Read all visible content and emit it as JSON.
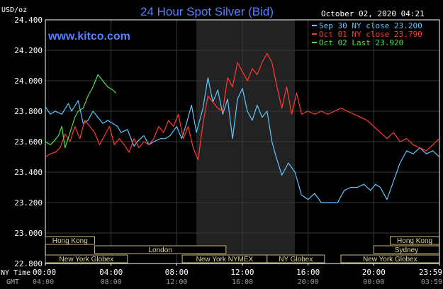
{
  "header": {
    "title": "24 Hour Spot Silver (Bid)",
    "website": "www.kitco.com",
    "y_unit": "USD/oz",
    "datetime": "October 02, 2020 04:21"
  },
  "legend": [
    {
      "label": "Sep 30 NY close 23.200",
      "color": "#5ec8ff"
    },
    {
      "label": "Oct 01 NY close 23.790",
      "color": "#ff3b30"
    },
    {
      "label": "Oct 02 Last 23.920",
      "color": "#52e04a"
    }
  ],
  "axis_row_labels": {
    "ny_time": "NY Time",
    "gmt": "GMT"
  },
  "sessions": [
    {
      "label": "Hong Kong",
      "row": 0,
      "start": "00:00",
      "end": "03:00"
    },
    {
      "label": "Hong Kong",
      "row": 0,
      "start": "21:00",
      "end": "23:59"
    },
    {
      "label": "London",
      "row": 1,
      "start": "03:00",
      "end": "11:00"
    },
    {
      "label": "Sydney",
      "row": 1,
      "start": "20:00",
      "end": "23:59"
    },
    {
      "label": "New York Globex",
      "row": 2,
      "start": "00:00",
      "end": "05:00"
    },
    {
      "label": "New York NYMEX",
      "row": 2,
      "start": "08:20",
      "end": "13:30"
    },
    {
      "label": "NY Globex",
      "row": 2,
      "start": "13:30",
      "end": "17:00"
    },
    {
      "label": "New York Globex",
      "row": 2,
      "start": "18:00",
      "end": "23:59"
    }
  ],
  "chart_data": {
    "type": "line",
    "title": "24 Hour Spot Silver (Bid)",
    "ylabel": "USD/oz",
    "ylim": [
      22.8,
      24.4
    ],
    "y_ticks": [
      "24.400",
      "24.200",
      "24.000",
      "23.800",
      "23.600",
      "23.400",
      "23.200",
      "23.000",
      "22.800"
    ],
    "x_ticks_ny": [
      "00:00",
      "04:00",
      "08:00",
      "12:00",
      "16:00",
      "20:00",
      "23:59"
    ],
    "x_ticks_gmt": [
      "04:00",
      "08:00",
      "12:00",
      "16:00",
      "20:00",
      "00:00",
      "03:59"
    ],
    "highlight_range_hours": [
      9.2,
      15.2
    ],
    "grid": true,
    "legend_position": "top-right",
    "series": [
      {
        "name": "Sep 30 NY close 23.200",
        "color": "#5ec8ff",
        "x": [
          0,
          0.3,
          0.6,
          1.0,
          1.4,
          1.6,
          2.0,
          2.3,
          2.6,
          2.9,
          3.2,
          3.5,
          3.8,
          4.1,
          4.4,
          4.6,
          5.0,
          5.4,
          5.6,
          6.0,
          6.3,
          6.6,
          7.0,
          7.3,
          7.6,
          8.0,
          8.3,
          8.6,
          8.9,
          9.2,
          9.6,
          9.9,
          10.2,
          10.5,
          10.8,
          11.1,
          11.4,
          11.7,
          12.0,
          12.3,
          12.6,
          12.9,
          13.2,
          13.5,
          13.8,
          14.0,
          14.4,
          14.8,
          15.2,
          15.6,
          16.0,
          16.4,
          16.8,
          17.2,
          17.5,
          17.8,
          18.2,
          18.6,
          19.0,
          19.4,
          19.8,
          20.1,
          20.4,
          20.8,
          21.2,
          21.6,
          22.0,
          22.4,
          22.8,
          23.2,
          23.6,
          23.99
        ],
        "y": [
          23.83,
          23.78,
          23.8,
          23.78,
          23.85,
          23.8,
          23.87,
          23.72,
          23.74,
          23.8,
          23.76,
          23.72,
          23.74,
          23.72,
          23.7,
          23.66,
          23.68,
          23.57,
          23.6,
          23.64,
          23.58,
          23.6,
          23.62,
          23.62,
          23.64,
          23.7,
          23.62,
          23.72,
          23.84,
          23.66,
          23.82,
          24.02,
          23.86,
          23.94,
          23.78,
          23.88,
          23.62,
          23.88,
          23.95,
          23.8,
          23.74,
          23.84,
          23.76,
          23.8,
          23.6,
          23.52,
          23.38,
          23.46,
          23.4,
          23.25,
          23.22,
          23.26,
          23.2,
          23.2,
          23.2,
          23.2,
          23.28,
          23.3,
          23.3,
          23.32,
          23.28,
          23.32,
          23.3,
          23.22,
          23.34,
          23.46,
          23.54,
          23.52,
          23.56,
          23.52,
          23.54,
          23.5
        ]
      },
      {
        "name": "Oct 01 NY close 23.790",
        "color": "#ff3b30",
        "x": [
          0,
          0.3,
          0.6,
          0.9,
          1.2,
          1.5,
          1.8,
          2.1,
          2.4,
          2.7,
          3.0,
          3.3,
          3.6,
          3.9,
          4.2,
          4.5,
          4.8,
          5.1,
          5.4,
          5.7,
          6.0,
          6.3,
          6.6,
          6.9,
          7.2,
          7.5,
          7.8,
          8.1,
          8.4,
          8.7,
          9.0,
          9.3,
          9.6,
          9.9,
          10.2,
          10.5,
          10.8,
          11.1,
          11.4,
          11.7,
          12.0,
          12.3,
          12.6,
          12.9,
          13.2,
          13.5,
          13.8,
          14.1,
          14.4,
          14.7,
          15.0,
          15.3,
          15.6,
          16.0,
          16.4,
          16.8,
          17.2,
          17.6,
          18.0,
          18.4,
          18.8,
          19.2,
          19.6,
          20.0,
          20.4,
          20.8,
          21.2,
          21.6,
          22.0,
          22.4,
          22.8,
          23.2,
          23.6,
          23.99
        ],
        "y": [
          23.5,
          23.52,
          23.53,
          23.56,
          23.65,
          23.6,
          23.7,
          23.62,
          23.74,
          23.7,
          23.66,
          23.58,
          23.64,
          23.7,
          23.58,
          23.62,
          23.58,
          23.53,
          23.62,
          23.56,
          23.6,
          23.58,
          23.62,
          23.7,
          23.66,
          23.74,
          23.7,
          23.78,
          23.62,
          23.7,
          23.56,
          23.48,
          23.72,
          23.9,
          23.86,
          23.82,
          23.8,
          24.02,
          23.96,
          24.12,
          24.06,
          24.0,
          24.08,
          24.04,
          24.12,
          24.18,
          24.12,
          23.96,
          23.82,
          23.96,
          23.78,
          23.92,
          23.78,
          23.8,
          23.78,
          23.8,
          23.78,
          23.8,
          23.82,
          23.8,
          23.78,
          23.76,
          23.74,
          23.7,
          23.66,
          23.62,
          23.66,
          23.6,
          23.62,
          23.58,
          23.56,
          23.54,
          23.58,
          23.62
        ]
      },
      {
        "name": "Oct 02 Last 23.920",
        "color": "#52e04a",
        "x": [
          0,
          0.3,
          0.5,
          0.8,
          1.0,
          1.2,
          1.5,
          1.8,
          2.0,
          2.3,
          2.6,
          2.9,
          3.2,
          3.5,
          3.8,
          4.1,
          4.3
        ],
        "y": [
          23.6,
          23.58,
          23.6,
          23.64,
          23.7,
          23.56,
          23.66,
          23.76,
          23.8,
          23.82,
          23.9,
          23.96,
          24.04,
          24.0,
          23.96,
          23.94,
          23.92
        ]
      }
    ]
  }
}
